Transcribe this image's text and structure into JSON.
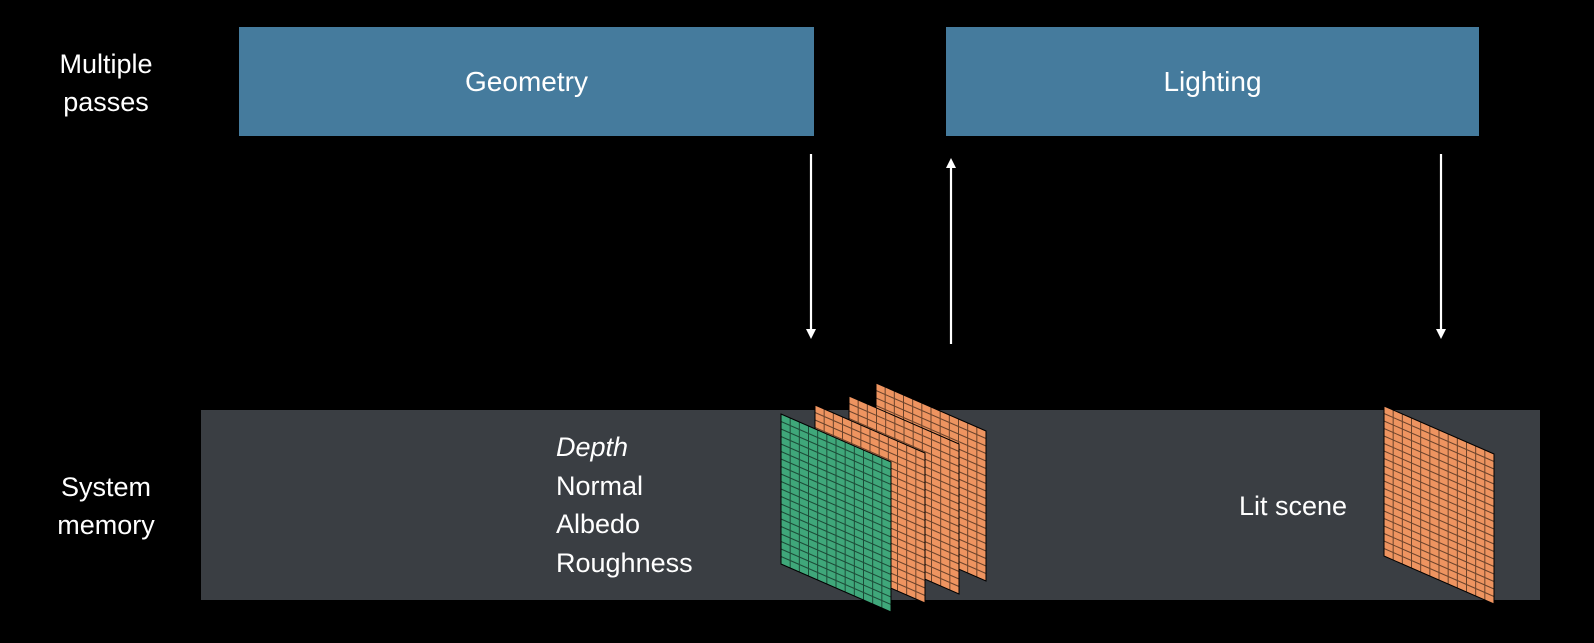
{
  "rows": {
    "passes": [
      "Multiple",
      "passes"
    ],
    "memory": [
      "System",
      "memory"
    ]
  },
  "passes": {
    "geometry": "Geometry",
    "lighting": "Lighting"
  },
  "buffers": {
    "depth": "Depth",
    "normal": "Normal",
    "albedo": "Albedo",
    "roughness": "Roughness"
  },
  "lit_scene": "Lit scene",
  "colors": {
    "pass_box": "#457b9d",
    "memory_band": "#3a3e43",
    "green_buffer": "#3fa77a",
    "orange_buffer": "#ee9460",
    "background": "#000000"
  }
}
